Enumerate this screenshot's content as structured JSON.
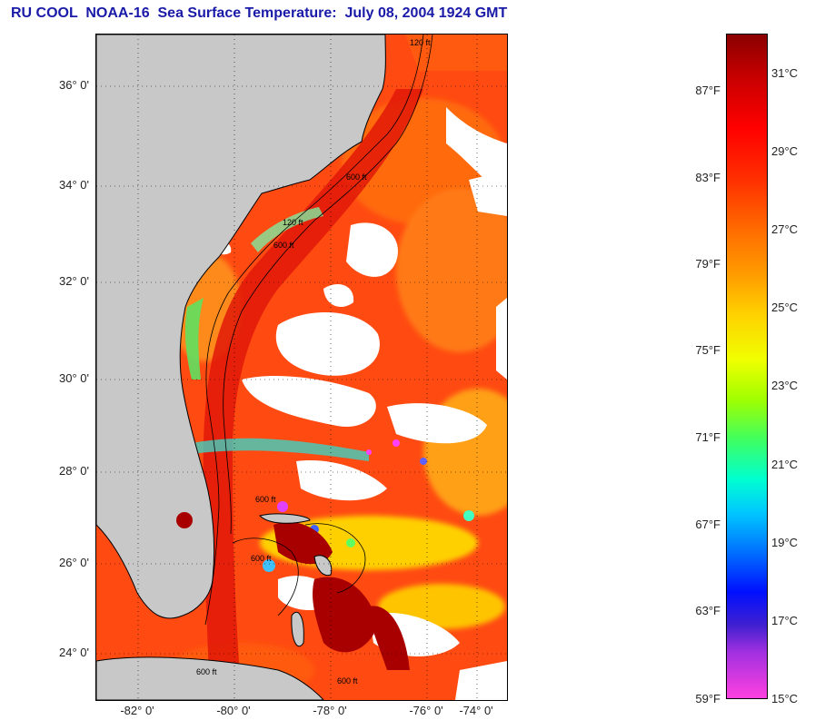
{
  "title": "RU COOL  NOAA-16  Sea Surface Temperature:  July 08, 2004 1924 GMT",
  "map": {
    "lat_labels": [
      "36° 0'",
      "34° 0'",
      "32° 0'",
      "30° 0'",
      "28° 0'",
      "26° 0'",
      "24° 0'"
    ],
    "lon_labels": [
      "-82° 0'",
      "-80° 0'",
      "-78° 0'",
      "-76° 0'",
      "-74° 0'"
    ],
    "contour_labels": [
      "120 ft",
      "600 ft",
      "120 ft",
      "600 ft",
      "600 ft",
      "600 ft",
      "600 ft",
      "600 ft"
    ],
    "colors": {
      "land": "#c8c8c8",
      "cloud": "#ffffff",
      "warm": "#ff4a12",
      "hot": "#a80000",
      "cool": "#ffb000"
    }
  },
  "colorbar": {
    "fahrenheit": [
      "87°F",
      "83°F",
      "79°F",
      "75°F",
      "71°F",
      "67°F",
      "63°F",
      "59°F"
    ],
    "celsius": [
      "31°C",
      "29°C",
      "27°C",
      "25°C",
      "23°C",
      "21°C",
      "19°C",
      "17°C",
      "15°C"
    ]
  }
}
